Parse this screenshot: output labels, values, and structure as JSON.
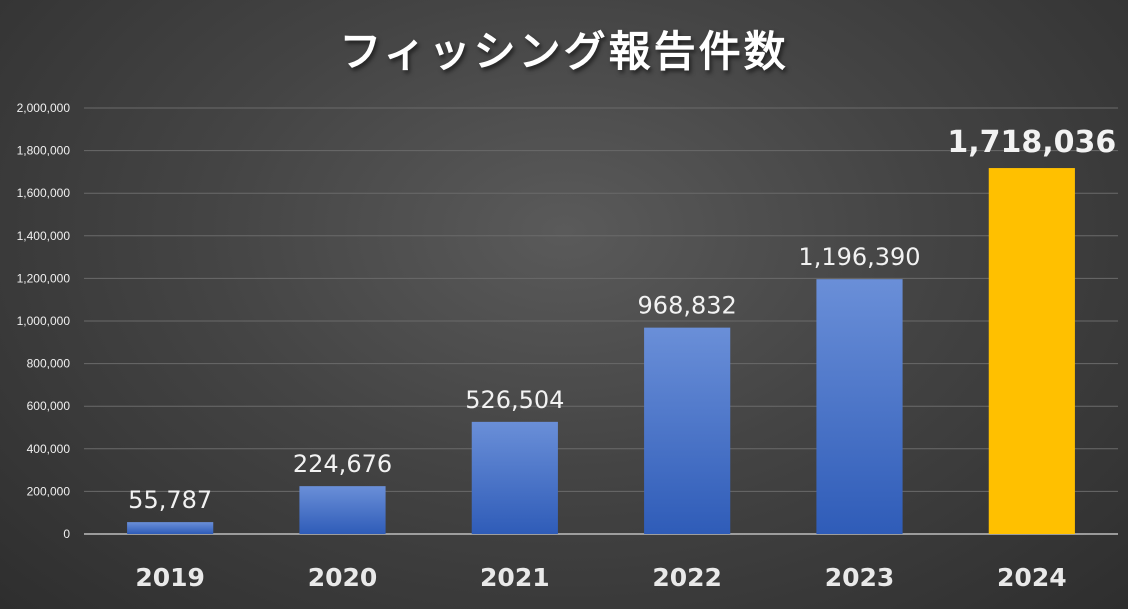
{
  "chart_data": {
    "type": "bar",
    "title": "フィッシング報告件数",
    "categories": [
      "2019",
      "2020",
      "2021",
      "2022",
      "2023",
      "2024"
    ],
    "values": [
      55787,
      224676,
      526504,
      968832,
      1196390,
      1718036
    ],
    "data_labels": [
      "55,787",
      "224,676",
      "526,504",
      "968,832",
      "1,196,390",
      "1,718,036"
    ],
    "ylim": [
      0,
      2000000
    ],
    "yticks": [
      0,
      200000,
      400000,
      600000,
      800000,
      1000000,
      1200000,
      1400000,
      1600000,
      1800000,
      2000000
    ],
    "ytick_labels": [
      "0",
      "200,000",
      "400,000",
      "600,000",
      "800,000",
      "1,000,000",
      "1,200,000",
      "1,400,000",
      "1,600,000",
      "1,800,000",
      "2,000,000"
    ],
    "xlabel": "",
    "ylabel": "",
    "grid": true,
    "legend": "none",
    "highlight_index": 5,
    "colors": {
      "bar": "#4472c4",
      "bar_light": "#6a8fd8",
      "bar_dark": "#2f5cb8",
      "highlight": "#ffc000",
      "highlight_label": "#ffc000",
      "label": "#f2f2f2",
      "grid": "#6a6a6a"
    }
  }
}
